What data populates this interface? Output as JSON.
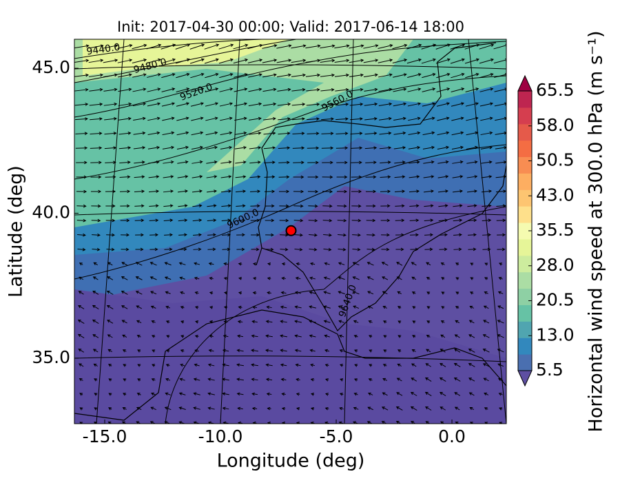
{
  "chart_data": {
    "type": "map",
    "title": "Init: 2017-04-30 00:00; Valid: 2017-06-14 18:00",
    "xlabel": "Longitude (deg)",
    "ylabel": "Latitude (deg)",
    "xlim": [
      -16.31,
      2.35
    ],
    "ylim": [
      32.74,
      46.0
    ],
    "xticks": [
      {
        "value": -15,
        "label": "-15.0"
      },
      {
        "value": -10,
        "label": "-10.0"
      },
      {
        "value": -5,
        "label": "-5.0"
      },
      {
        "value": 0,
        "label": "0.0"
      }
    ],
    "yticks": [
      {
        "value": 35,
        "label": "35.0"
      },
      {
        "value": 40,
        "label": "40.0"
      },
      {
        "value": 45,
        "label": "45.0"
      }
    ],
    "contour_labels": [
      "9440.0",
      "9480.0",
      "9520.0",
      "9560.0",
      "9600.0",
      "9640.0"
    ],
    "marker": {
      "lon": -6.95,
      "lat": 39.4,
      "color": "#ff0000"
    },
    "colorbar": {
      "label": "Horizontal wind speed at 300.0 hPa (m s⁻¹)",
      "lim": [
        5.5,
        65.5
      ],
      "ticks": [
        5.5,
        13.0,
        20.5,
        28.0,
        35.5,
        43.0,
        50.5,
        58.0,
        65.5
      ],
      "tick_labels": [
        "5.5",
        "13.0",
        "20.5",
        "28.0",
        "35.5",
        "43.0",
        "50.5",
        "58.0",
        "65.5"
      ],
      "colors": [
        "#5e4fa2",
        "#4a6fb0",
        "#3288bd",
        "#50a5b0",
        "#66c2a5",
        "#8ed0a4",
        "#abdda4",
        "#cdec9e",
        "#e6f598",
        "#f5fbb0",
        "#fee08b",
        "#fdc571",
        "#fdae61",
        "#f88d52",
        "#f46d43",
        "#e55a4a",
        "#d53e4f",
        "#be2550",
        "#9e0142"
      ]
    }
  }
}
